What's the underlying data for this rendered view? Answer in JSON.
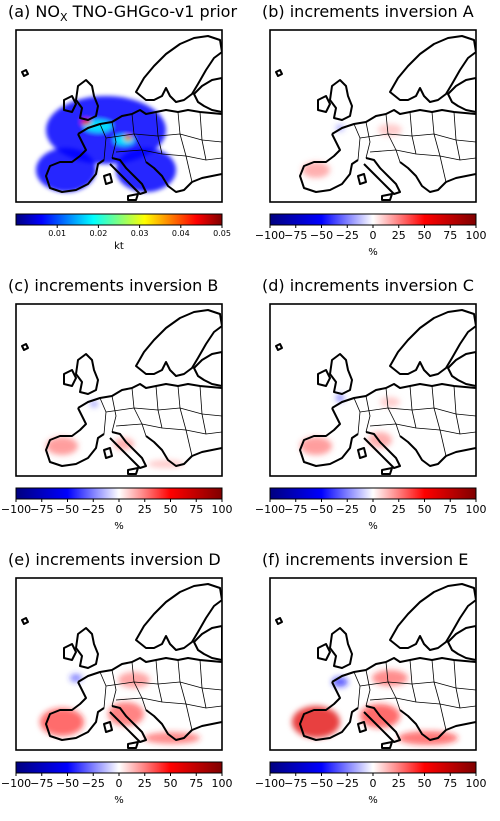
{
  "colors": {
    "jet": [
      "#00007f",
      "#0000ff",
      "#007fff",
      "#00ffff",
      "#7fff7f",
      "#ffff00",
      "#ff7f00",
      "#ff0000",
      "#7f0000"
    ],
    "bwr": [
      "#00007f",
      "#0000ff",
      "#ffffff",
      "#ff0000",
      "#7f0000"
    ],
    "coast": "#000000"
  },
  "panels": [
    {
      "key": "a",
      "title_pre": "(a) NO",
      "title_sub": "X",
      "title_post": " TNO-GHGco-v1 prior",
      "colormap": "jet",
      "colorbar": {
        "ticks": [
          "0.01",
          "0.02",
          "0.03",
          "0.04",
          "0.05"
        ],
        "tick_values": [
          0.01,
          0.02,
          0.03,
          0.04,
          0.05
        ],
        "vmin": 0.0,
        "vmax": 0.05,
        "label": "kt"
      }
    },
    {
      "key": "b",
      "title": "(b) increments inversion A",
      "colormap": "bwr",
      "colorbar": {
        "ticks": [
          "−100",
          "−75",
          "−50",
          "−25",
          "0",
          "25",
          "50",
          "75",
          "100"
        ],
        "tick_values": [
          -100,
          -75,
          -50,
          -25,
          0,
          25,
          50,
          75,
          100
        ],
        "vmin": -100,
        "vmax": 100,
        "label": "%"
      }
    },
    {
      "key": "c",
      "title": "(c) increments inversion B",
      "colormap": "bwr",
      "colorbar": {
        "ticks": [
          "−100",
          "−75",
          "−50",
          "−25",
          "0",
          "25",
          "50",
          "75",
          "100"
        ],
        "tick_values": [
          -100,
          -75,
          -50,
          -25,
          0,
          25,
          50,
          75,
          100
        ],
        "vmin": -100,
        "vmax": 100,
        "label": "%"
      }
    },
    {
      "key": "d",
      "title": "(d) increments inversion C",
      "colormap": "bwr",
      "colorbar": {
        "ticks": [
          "−100",
          "−75",
          "−50",
          "−25",
          "0",
          "25",
          "50",
          "75",
          "100"
        ],
        "tick_values": [
          -100,
          -75,
          -50,
          -25,
          0,
          25,
          50,
          75,
          100
        ],
        "vmin": -100,
        "vmax": 100,
        "label": "%"
      }
    },
    {
      "key": "e",
      "title": "(e) increments inversion D",
      "colormap": "bwr",
      "colorbar": {
        "ticks": [
          "−100",
          "−75",
          "−50",
          "−25",
          "0",
          "25",
          "50",
          "75",
          "100"
        ],
        "tick_values": [
          -100,
          -75,
          -50,
          -25,
          0,
          25,
          50,
          75,
          100
        ],
        "vmin": -100,
        "vmax": 100,
        "label": "%"
      }
    },
    {
      "key": "f",
      "title": "(f) increments inversion E",
      "colormap": "bwr",
      "colorbar": {
        "ticks": [
          "−100",
          "−75",
          "−50",
          "−25",
          "0",
          "25",
          "50",
          "75",
          "100"
        ],
        "tick_values": [
          -100,
          -75,
          -50,
          -25,
          0,
          25,
          50,
          75,
          100
        ],
        "vmin": -100,
        "vmax": 100,
        "label": "%"
      }
    }
  ],
  "chart_data": [
    {
      "type": "heatmap",
      "title": "NOx TNO-GHGco-v1 prior",
      "units": "kt",
      "range": [
        0.0,
        0.05
      ],
      "colorbar_ticks": [
        0.01,
        0.02,
        0.03,
        0.04,
        0.05
      ]
    },
    {
      "type": "heatmap",
      "title": "increments inversion A",
      "units": "%",
      "range": [
        -100,
        100
      ],
      "colorbar_ticks": [
        -100,
        -75,
        -50,
        -25,
        0,
        25,
        50,
        75,
        100
      ]
    },
    {
      "type": "heatmap",
      "title": "increments inversion B",
      "units": "%",
      "range": [
        -100,
        100
      ],
      "colorbar_ticks": [
        -100,
        -75,
        -50,
        -25,
        0,
        25,
        50,
        75,
        100
      ]
    },
    {
      "type": "heatmap",
      "title": "increments inversion C",
      "units": "%",
      "range": [
        -100,
        100
      ],
      "colorbar_ticks": [
        -100,
        -75,
        -50,
        -25,
        0,
        25,
        50,
        75,
        100
      ]
    },
    {
      "type": "heatmap",
      "title": "increments inversion D",
      "units": "%",
      "range": [
        -100,
        100
      ],
      "colorbar_ticks": [
        -100,
        -75,
        -50,
        -25,
        0,
        25,
        50,
        75,
        100
      ]
    },
    {
      "type": "heatmap",
      "title": "increments inversion E",
      "units": "%",
      "range": [
        -100,
        100
      ],
      "colorbar_ticks": [
        -100,
        -75,
        -50,
        -25,
        0,
        25,
        50,
        75,
        100
      ]
    }
  ]
}
